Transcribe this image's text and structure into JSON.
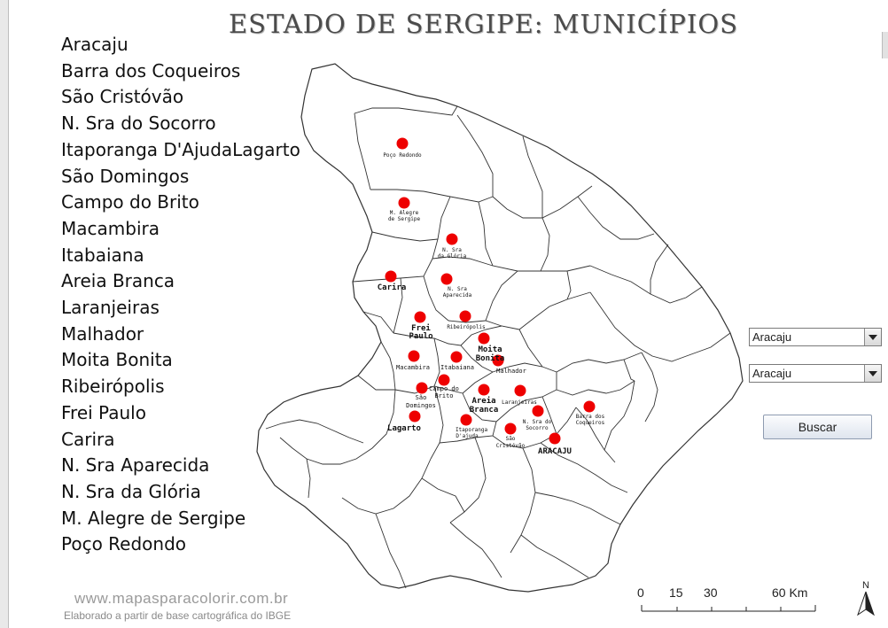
{
  "title": "ESTADO DE SERGIPE: MUNICÍPIOS",
  "municipality_list": [
    "Aracaju",
    "Barra dos Coqueiros",
    "São Cristóvão",
    "N. Sra do Socorro",
    "Itaporanga D'AjudaLagarto",
    "São Domingos",
    "Campo do Brito",
    "Macambira",
    "Itabaiana",
    "Areia Branca",
    "Laranjeiras",
    "Malhador",
    "Moita Bonita",
    "Ribeirópolis",
    "Frei Paulo",
    "Carira",
    "N. Sra Aparecida",
    "N. Sra da Glória",
    "M. Alegre de Sergipe",
    "Poço Redondo"
  ],
  "map_labels": {
    "poco_redondo": "Poço Redondo",
    "m_alegre_1": "M. Alegre",
    "m_alegre_2": "de Sergipe",
    "gloria_1": "N. Sra",
    "gloria_2": "da Glória",
    "carira": "Carira",
    "aparecida_1": "N. Sra",
    "aparecida_2": "Aparecida",
    "ribeiropolis": "Ribeirópolis",
    "frei_paulo_1": "Frei",
    "frei_paulo_2": "Paulo",
    "moita_bonita_1": "Moita",
    "moita_bonita_2": "Bonita",
    "macambira": "Macambira",
    "itabaiana": "Itabaiana",
    "malhador": "Malhador",
    "campo_brito_1": "Campo do",
    "campo_brito_2": "Brito",
    "sao_domingos_1": "São",
    "sao_domingos_2": "Domingos",
    "areia_branca_1": "Areia",
    "areia_branca_2": "Branca",
    "laranjeiras": "Laranjeiras",
    "lagarto": "Lagarto",
    "itaporanga_1": "Itaporanga",
    "itaporanga_2": "D'ajuda",
    "socorro_1": "N. Sra do",
    "socorro_2": "Socorro",
    "sao_cristovao_1": "São",
    "sao_cristovao_2": "Cristóvão",
    "barra_1": "Barra dos",
    "barra_2": "Coqueiros",
    "aracaju": "ARACAJU"
  },
  "controls": {
    "select_1_value": "Aracaju",
    "select_2_value": "Aracaju",
    "search_button": "Buscar"
  },
  "scale_bar": {
    "unit": "Km",
    "ticks": [
      "0",
      "15",
      "30",
      "60 Km"
    ]
  },
  "north_label": "N",
  "credits": {
    "site": "www.mapasparacolorir.com.br",
    "source": "Elaborado a partir de base cartográfica do IBGE"
  },
  "colors": {
    "marker": "#ee0000",
    "border": "#333333",
    "title": "#4b4b4b"
  }
}
